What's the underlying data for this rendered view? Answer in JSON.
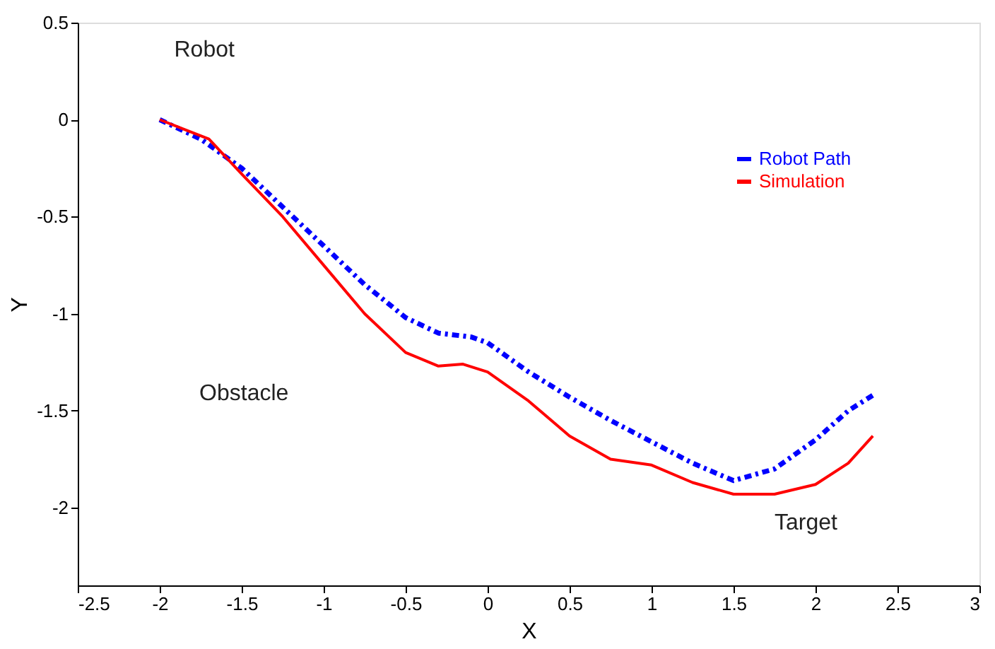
{
  "chart_data": {
    "type": "line",
    "xlabel": "X",
    "ylabel": "Y",
    "xlim": [
      -2.5,
      3
    ],
    "xticks": [
      -2.5,
      -2,
      -1.5,
      -1,
      -0.5,
      0,
      0.5,
      1,
      1.5,
      2,
      2.5,
      3
    ],
    "ylim": [
      -2.4,
      0.5
    ],
    "yticks": [
      -2,
      -1.5,
      -1,
      -0.5,
      0,
      0.5
    ],
    "grid": false,
    "legend": "top right",
    "marker": "none",
    "series": [
      {
        "name": "Robot Path",
        "color": "#0000ff",
        "line_style": "dashed",
        "x": [
          -2,
          -1.75,
          -1.5,
          -1.25,
          -1,
          -0.75,
          -0.5,
          -0.3,
          -0.1,
          0,
          0.25,
          0.5,
          0.75,
          1,
          1.25,
          1.5,
          1.75,
          2,
          2.2,
          2.35
        ],
        "values": [
          0,
          -0.1,
          -0.25,
          -0.45,
          -0.65,
          -0.85,
          -1.02,
          -1.1,
          -1.12,
          -1.15,
          -1.3,
          -1.43,
          -1.55,
          -1.66,
          -1.77,
          -1.86,
          -1.8,
          -1.65,
          -1.5,
          -1.42
        ]
      },
      {
        "name": "Simulation",
        "color": "#ff0000",
        "line_style": "solid",
        "x": [
          -2,
          -1.7,
          -1.5,
          -1.25,
          -1,
          -0.75,
          -0.5,
          -0.3,
          -0.15,
          0,
          0.25,
          0.5,
          0.75,
          1,
          1.25,
          1.5,
          1.75,
          2,
          2.2,
          2.35
        ],
        "values": [
          0,
          -0.1,
          -0.28,
          -0.5,
          -0.75,
          -1.0,
          -1.2,
          -1.27,
          -1.26,
          -1.3,
          -1.45,
          -1.63,
          -1.75,
          -1.78,
          -1.87,
          -1.93,
          -1.93,
          -1.88,
          -1.77,
          -1.63
        ]
      }
    ],
    "annotations": [
      "Robot",
      "Obstacle",
      "Target"
    ]
  }
}
